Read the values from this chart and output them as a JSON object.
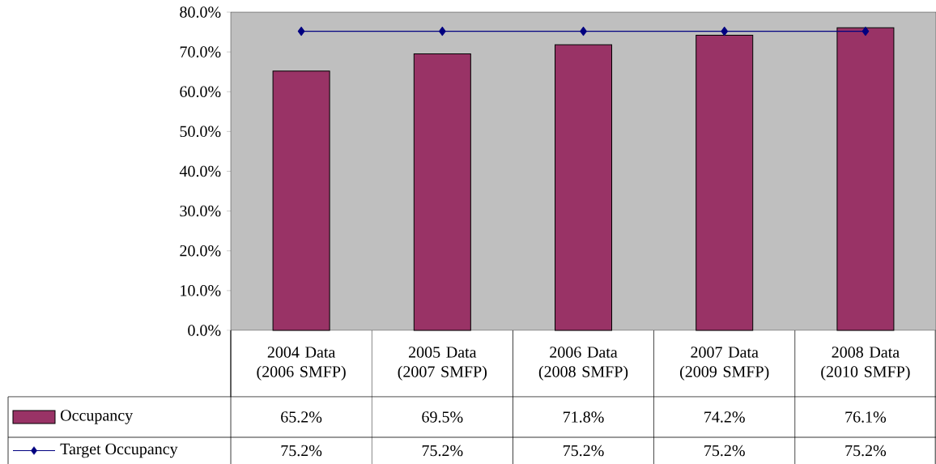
{
  "chart_data": {
    "type": "bar",
    "categories": [
      "2004 Data (2006 SMFP)",
      "2005 Data (2007 SMFP)",
      "2006 Data (2008 SMFP)",
      "2007 Data (2009 SMFP)",
      "2008 Data (2010 SMFP)"
    ],
    "series": [
      {
        "name": "Occupancy",
        "color": "#993366",
        "values": [
          65.2,
          69.5,
          71.8,
          74.2,
          76.1
        ],
        "value_labels": [
          "65.2%",
          "69.5%",
          "71.8%",
          "74.2%",
          "76.1%"
        ]
      },
      {
        "name": "Target Occupancy",
        "type": "line",
        "color": "#000080",
        "marker": "diamond",
        "values": [
          75.2,
          75.2,
          75.2,
          75.2,
          75.2
        ],
        "value_labels": [
          "75.2%",
          "75.2%",
          "75.2%",
          "75.2%",
          "75.2%"
        ]
      }
    ],
    "ylim": [
      0,
      80
    ],
    "yticks": [
      {
        "value": 0,
        "label": "0.0%"
      },
      {
        "value": 10,
        "label": "10.0%"
      },
      {
        "value": 20,
        "label": "20.0%"
      },
      {
        "value": 30,
        "label": "30.0%"
      },
      {
        "value": 40,
        "label": "40.0%"
      },
      {
        "value": 50,
        "label": "50.0%"
      },
      {
        "value": 60,
        "label": "60.0%"
      },
      {
        "value": 70,
        "label": "70.0%"
      },
      {
        "value": 80,
        "label": "80.0%"
      }
    ],
    "grid": false,
    "legend": "bottom"
  }
}
